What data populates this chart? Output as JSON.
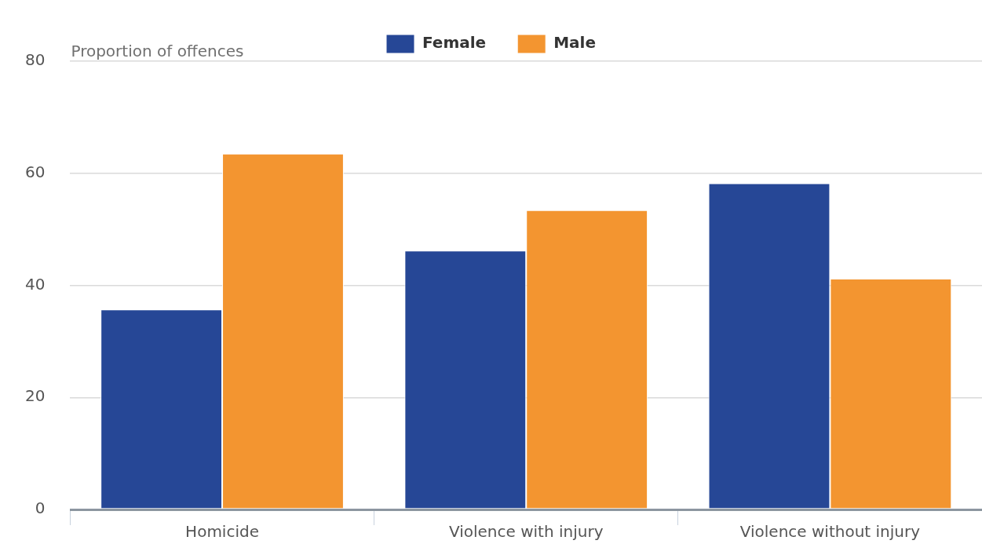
{
  "chart_data": {
    "type": "bar",
    "ylabel": "Proportion of offences",
    "categories": [
      "Homicide",
      "Violence with injury",
      "Violence without injury"
    ],
    "series": [
      {
        "name": "Female",
        "color": "#264796",
        "values": [
          35.7,
          46.2,
          58.2
        ]
      },
      {
        "name": "Male",
        "color": "#f39530",
        "values": [
          63.5,
          53.4,
          41.2
        ]
      }
    ],
    "ylim": [
      0,
      80
    ],
    "yticks": [
      0,
      20,
      40,
      60,
      80
    ],
    "grid": "y",
    "legend": "top"
  }
}
